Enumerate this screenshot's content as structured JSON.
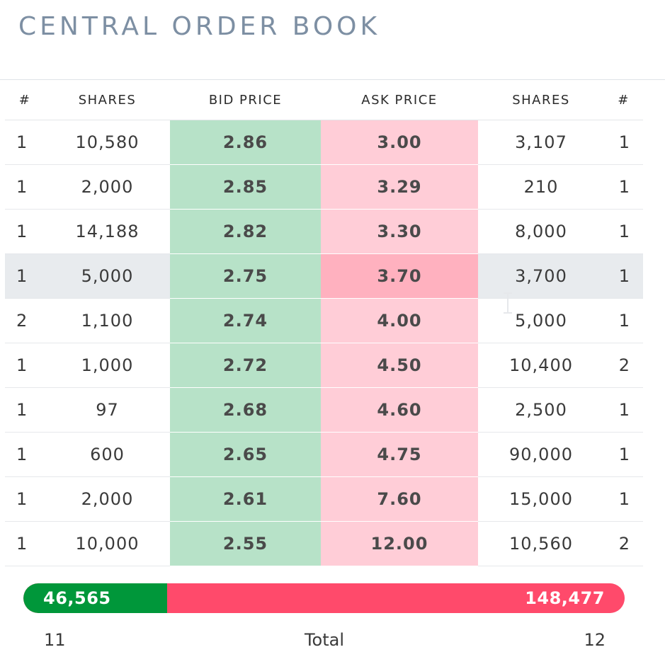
{
  "title": "CENTRAL ORDER BOOK",
  "columns": [
    "#",
    "SHARES",
    "BID PRICE",
    "ASK PRICE",
    "SHARES",
    "#"
  ],
  "rows": [
    {
      "bid_count": "1",
      "bid_shares": "10,580",
      "bid_price": "2.86",
      "ask_price": "3.00",
      "ask_shares": "3,107",
      "ask_count": "1"
    },
    {
      "bid_count": "1",
      "bid_shares": "2,000",
      "bid_price": "2.85",
      "ask_price": "3.29",
      "ask_shares": "210",
      "ask_count": "1"
    },
    {
      "bid_count": "1",
      "bid_shares": "14,188",
      "bid_price": "2.82",
      "ask_price": "3.30",
      "ask_shares": "8,000",
      "ask_count": "1"
    },
    {
      "bid_count": "1",
      "bid_shares": "5,000",
      "bid_price": "2.75",
      "ask_price": "3.70",
      "ask_shares": "3,700",
      "ask_count": "1",
      "highlighted": true
    },
    {
      "bid_count": "2",
      "bid_shares": "1,100",
      "bid_price": "2.74",
      "ask_price": "4.00",
      "ask_shares": "5,000",
      "ask_count": "1"
    },
    {
      "bid_count": "1",
      "bid_shares": "1,000",
      "bid_price": "2.72",
      "ask_price": "4.50",
      "ask_shares": "10,400",
      "ask_count": "2"
    },
    {
      "bid_count": "1",
      "bid_shares": "97",
      "bid_price": "2.68",
      "ask_price": "4.60",
      "ask_shares": "2,500",
      "ask_count": "1"
    },
    {
      "bid_count": "1",
      "bid_shares": "600",
      "bid_price": "2.65",
      "ask_price": "4.75",
      "ask_shares": "90,000",
      "ask_count": "1"
    },
    {
      "bid_count": "1",
      "bid_shares": "2,000",
      "bid_price": "2.61",
      "ask_price": "7.60",
      "ask_shares": "15,000",
      "ask_count": "1"
    },
    {
      "bid_count": "1",
      "bid_shares": "10,000",
      "bid_price": "2.55",
      "ask_price": "12.00",
      "ask_shares": "10,560",
      "ask_count": "2"
    }
  ],
  "totals": {
    "bid_shares": "46,565",
    "ask_shares": "148,477",
    "bid_fraction": 0.2387,
    "bid_orders": "11",
    "label": "Total",
    "ask_orders": "12"
  },
  "colors": {
    "bid_bg": "#b7e2c8",
    "ask_bg": "#ffcdd7",
    "bid_bar": "#00973a",
    "ask_bar": "#ff4a6b",
    "title": "#7d8fa3"
  }
}
